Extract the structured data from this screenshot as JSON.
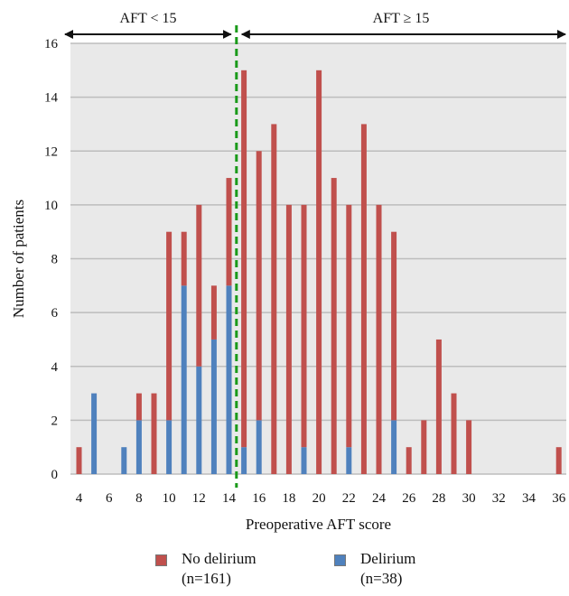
{
  "chart_data": {
    "type": "bar",
    "stacked": true,
    "title": "",
    "xlabel": "Preoperative AFT score",
    "ylabel": "Number of patients",
    "xlim": [
      4,
      36
    ],
    "ylim": [
      0,
      16
    ],
    "x_ticks": [
      4,
      6,
      8,
      10,
      12,
      14,
      16,
      18,
      20,
      22,
      24,
      26,
      28,
      30,
      32,
      34,
      36
    ],
    "y_ticks": [
      0,
      2,
      4,
      6,
      8,
      10,
      12,
      14,
      16
    ],
    "grid": true,
    "x": [
      4,
      5,
      6,
      7,
      8,
      9,
      10,
      11,
      12,
      13,
      14,
      15,
      16,
      17,
      18,
      19,
      20,
      21,
      22,
      23,
      24,
      25,
      26,
      27,
      28,
      29,
      30,
      31,
      32,
      33,
      34,
      35,
      36
    ],
    "series": [
      {
        "name": "No delirium",
        "color": "#c0504d",
        "values": [
          1,
          0,
          0,
          0,
          1,
          3,
          7,
          2,
          6,
          2,
          4,
          14,
          10,
          13,
          10,
          9,
          15,
          11,
          9,
          13,
          10,
          7,
          1,
          2,
          5,
          3,
          2,
          0,
          0,
          0,
          0,
          0,
          1
        ]
      },
      {
        "name": "Delirium",
        "color": "#4f81bd",
        "values": [
          0,
          3,
          0,
          1,
          2,
          0,
          2,
          7,
          4,
          5,
          7,
          1,
          2,
          0,
          0,
          1,
          0,
          0,
          1,
          0,
          0,
          2,
          0,
          0,
          0,
          0,
          0,
          0,
          0,
          0,
          0,
          0,
          0
        ]
      }
    ],
    "cutoff": {
      "x": 14.5,
      "color": "#1a9a1a"
    },
    "regions": [
      {
        "label": "AFT < 15"
      },
      {
        "label": "AFT ≥ 15"
      }
    ],
    "legend": {
      "placement": "bottom",
      "items": [
        {
          "label": "No delirium",
          "count": "(n=161)"
        },
        {
          "label": "Delirium",
          "count": "(n=38)"
        }
      ]
    }
  }
}
